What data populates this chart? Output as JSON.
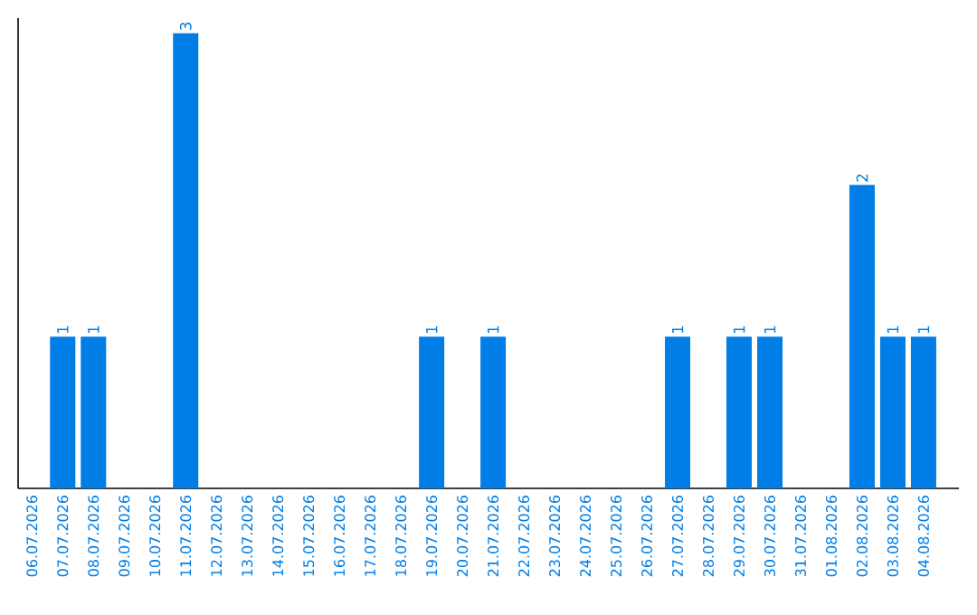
{
  "chart_data": {
    "type": "bar",
    "categories": [
      "06.07.2026",
      "07.07.2026",
      "08.07.2026",
      "09.07.2026",
      "10.07.2026",
      "11.07.2026",
      "12.07.2026",
      "13.07.2026",
      "14.07.2026",
      "15.07.2026",
      "16.07.2026",
      "17.07.2026",
      "18.07.2026",
      "19.07.2026",
      "20.07.2026",
      "21.07.2026",
      "22.07.2026",
      "23.07.2026",
      "24.07.2026",
      "25.07.2026",
      "26.07.2026",
      "27.07.2026",
      "28.07.2026",
      "29.07.2026",
      "30.07.2026",
      "31.07.2026",
      "01.08.2026",
      "02.08.2026",
      "03.08.2026",
      "04.08.2026"
    ],
    "values": [
      0,
      1,
      1,
      0,
      0,
      3,
      0,
      0,
      0,
      0,
      0,
      0,
      0,
      1,
      0,
      1,
      0,
      0,
      0,
      0,
      0,
      1,
      0,
      1,
      1,
      0,
      0,
      2,
      1,
      1
    ],
    "value_labels": [
      null,
      "1",
      "1",
      null,
      null,
      "3",
      null,
      null,
      null,
      null,
      null,
      null,
      null,
      "1",
      null,
      "1",
      null,
      null,
      null,
      null,
      null,
      "1",
      null,
      "1",
      "1",
      null,
      null,
      "2",
      "1",
      "1"
    ],
    "color": "#007ee5",
    "ylim": [
      0,
      3.1
    ],
    "tick_labels": "x"
  }
}
